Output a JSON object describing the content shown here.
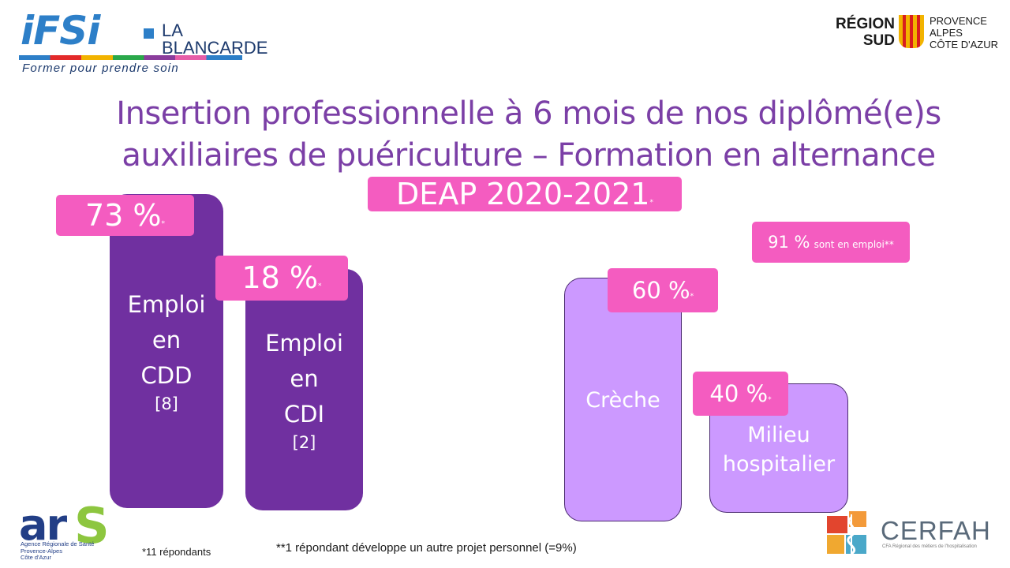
{
  "logos": {
    "ifsi": {
      "name": "iFSi",
      "sub": "LA\nBLANCARDE",
      "tagline": "Former pour prendre soin"
    },
    "region": {
      "main": "RÉGION\nSUD",
      "sub": "PROVENCE\nALPES\nCÔTE D'AZUR"
    },
    "ars": {
      "name": "ar",
      "letter": "S",
      "sub": "Agence Régionale de Santé\nProvence-Alpes\nCôte d'Azur"
    },
    "cerfah": {
      "name": "CERFAH",
      "sub": "CFA Régional des métiers de l'hospitalisation"
    }
  },
  "title": {
    "line1": "Insertion professionnelle à 6 mois de nos diplômé(e)s",
    "line2": "auxiliaires de puériculture – Formation en alternance"
  },
  "subtitle": {
    "text": "DEAP 2020-2021",
    "marker": "*"
  },
  "left_group": {
    "bars": [
      {
        "label_lines": [
          "Emploi",
          "en",
          "CDD"
        ],
        "count": "[8]",
        "percent": "73 %",
        "marker": "*"
      },
      {
        "label_lines": [
          "Emploi",
          "en",
          "CDI"
        ],
        "count": "[2]",
        "percent": "18 %",
        "marker": "*"
      }
    ]
  },
  "employment_badge": {
    "percent": "91 %",
    "text": "sont en emploi**"
  },
  "right_group": {
    "bars": [
      {
        "label_lines": [
          "Crèche"
        ],
        "percent": "60 %",
        "marker": "*"
      },
      {
        "label_lines": [
          "Milieu",
          "hospitalier"
        ],
        "percent": "40 %",
        "marker": "*"
      }
    ]
  },
  "footnotes": {
    "respondents": "*11 répondants",
    "other": "**1 répondant développe un autre projet personnel (=9%)"
  },
  "colors": {
    "title": "#7b3fa6",
    "badge": "#f45cc0",
    "bar_dark": "#7030a0",
    "bar_light": "#cc99ff"
  }
}
